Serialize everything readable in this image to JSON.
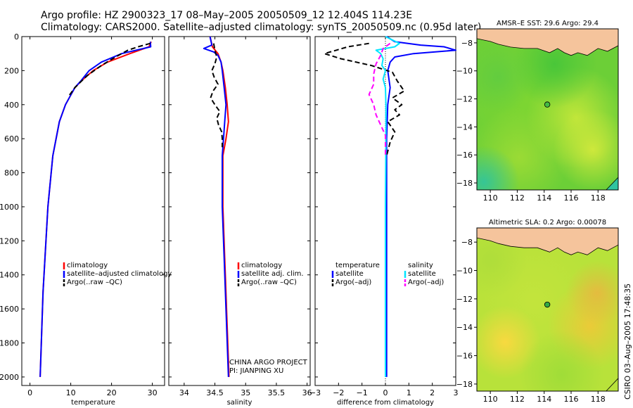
{
  "header": {
    "line1": "Argo profile: HZ 2900323_17 08–May–2005 20050509_12 12.404S 114.23E",
    "line2": "Climatology: CARS2000. Satellite–adjusted climatology: synTS_20050509.nc (0.95d later)"
  },
  "footer": {
    "stamp": "CSIRO 03–Aug–2005 17:48:35"
  },
  "colors": {
    "climatology": "#ff0000",
    "satellite": "#0000ff",
    "argo": "#000000",
    "salinity_satellite": "#00e5ff",
    "salinity_argo": "#ff00ff",
    "land": "#f5c49c",
    "ocean_mid": "#55cc33"
  },
  "chart_data": [
    {
      "type": "line",
      "panel": "temperature",
      "xlabel": "temperature",
      "ylabel": "",
      "xlim": [
        -2,
        33
      ],
      "ylim": [
        2050,
        0
      ],
      "xticks": [
        "0",
        "10",
        "20",
        "30"
      ],
      "xtick_values": [
        0,
        10,
        20,
        30
      ],
      "yticks": [
        "0",
        "200",
        "400",
        "600",
        "800",
        "1000",
        "1200",
        "1400",
        "1600",
        "1800",
        "2000"
      ],
      "ytick_values": [
        0,
        200,
        400,
        600,
        800,
        1000,
        1200,
        1400,
        1600,
        1800,
        2000
      ],
      "legend": [
        "climatology",
        "satellite–adjusted climatology",
        "Argo(..raw –QC)"
      ],
      "series": [
        {
          "name": "climatology",
          "color": "#ff0000",
          "depth": [
            30,
            60,
            100,
            150,
            200,
            260,
            300,
            400,
            500,
            700,
            1000,
            1500,
            2000
          ],
          "values": [
            29.7,
            29.2,
            24.5,
            19,
            15.5,
            12.6,
            11,
            8.7,
            7.2,
            5.6,
            4.4,
            3.2,
            2.5
          ]
        },
        {
          "name": "satellite–adjusted climatology",
          "color": "#0000ff",
          "depth": [
            30,
            60,
            100,
            150,
            200,
            260,
            300,
            400,
            500,
            700,
            1000,
            1500,
            2000
          ],
          "values": [
            29.5,
            29.6,
            22.5,
            17.5,
            14.5,
            12.5,
            11,
            8.7,
            7.2,
            5.6,
            4.4,
            3.2,
            2.5
          ]
        },
        {
          "name": "Argo(..raw –QC)",
          "color": "#000000",
          "dash": true,
          "depth": [
            40,
            60,
            80,
            120,
            170,
            230,
            300,
            350
          ],
          "values": [
            29.5,
            26.5,
            24,
            21,
            17.5,
            14,
            11,
            9.5
          ]
        }
      ]
    },
    {
      "type": "line",
      "panel": "salinity",
      "xlabel": "salinity",
      "xlim": [
        33.75,
        36.05
      ],
      "ylim": [
        2050,
        0
      ],
      "xticks": [
        "34",
        "34.5",
        "35",
        "35.5",
        "36"
      ],
      "xtick_values": [
        34,
        34.5,
        35,
        35.5,
        36
      ],
      "legend": [
        "climatology",
        "satellite adj. clim.",
        "Argo(..raw –QC)"
      ],
      "annotations": [
        "CHINA ARGO PROJECT",
        "PI: JIANPING XU"
      ],
      "series": [
        {
          "name": "climatology",
          "color": "#ff0000",
          "depth": [
            0,
            60,
            100,
            150,
            200,
            300,
            400,
            500,
            600,
            700,
            1000,
            1300,
            1600,
            2000
          ],
          "values": [
            34.42,
            34.46,
            34.55,
            34.6,
            34.63,
            34.67,
            34.7,
            34.72,
            34.68,
            34.63,
            34.63,
            34.66,
            34.69,
            34.73
          ]
        },
        {
          "name": "satellite adj. clim.",
          "color": "#0000ff",
          "depth": [
            0,
            50,
            70,
            90,
            110,
            150,
            200,
            300,
            400,
            500,
            600,
            700,
            1000,
            1300,
            1600,
            2000
          ],
          "values": [
            34.42,
            34.45,
            34.32,
            34.48,
            34.55,
            34.6,
            34.62,
            34.65,
            34.68,
            34.66,
            34.64,
            34.62,
            34.62,
            34.65,
            34.68,
            34.72
          ]
        },
        {
          "name": "Argo(..raw –QC)",
          "color": "#000000",
          "dash": true,
          "depth": [
            40,
            80,
            120,
            160,
            200,
            240,
            280,
            320,
            360,
            400,
            440,
            480,
            520,
            560,
            600,
            650
          ],
          "values": [
            34.48,
            34.5,
            34.53,
            34.5,
            34.45,
            34.49,
            34.55,
            34.47,
            34.43,
            34.5,
            34.58,
            34.53,
            34.56,
            34.61,
            34.62,
            34.62
          ]
        }
      ]
    },
    {
      "type": "line",
      "panel": "difference",
      "xlabel": "difference from climatology",
      "xlim": [
        -3,
        3
      ],
      "ylim": [
        2050,
        0
      ],
      "xticks": [
        "−3",
        "−2",
        "−1",
        "0",
        "1",
        "2",
        "3"
      ],
      "xtick_values": [
        -3,
        -2,
        -1,
        0,
        1,
        2,
        3
      ],
      "legend_left": [
        "temperature",
        "satellite",
        "Argo(–adj)"
      ],
      "legend_right": [
        "salinity",
        "satellite",
        "Argo(–adj)"
      ],
      "series": [
        {
          "name": "temperature satellite",
          "color": "#0000ff",
          "depth": [
            0,
            30,
            50,
            60,
            80,
            100,
            120,
            150,
            200,
            300,
            400,
            600,
            1000,
            1500,
            2000
          ],
          "values": [
            0.05,
            0.4,
            1.5,
            2.5,
            3.0,
            1.2,
            0.4,
            0.2,
            0.1,
            0.2,
            0.1,
            0.05,
            0.05,
            0.05,
            0.05
          ]
        },
        {
          "name": "temperature Argo(–adj)",
          "color": "#000000",
          "dash": true,
          "depth": [
            40,
            60,
            80,
            100,
            130,
            170,
            210,
            260,
            320,
            360,
            400,
            430,
            460,
            500,
            560,
            620,
            700
          ],
          "values": [
            -0.7,
            -1.6,
            -2.1,
            -2.6,
            -1.9,
            -0.6,
            0.3,
            0.5,
            0.8,
            0.3,
            0.7,
            0.4,
            0.6,
            0.1,
            0.4,
            0.2,
            0.05
          ]
        },
        {
          "name": "salinity satellite",
          "color": "#00e5ff",
          "depth": [
            0,
            40,
            60,
            80,
            100,
            130,
            170,
            200,
            250,
            300,
            400,
            600,
            1000,
            1500,
            2000
          ],
          "values": [
            0.0,
            0.6,
            0.4,
            -0.4,
            -0.2,
            -0.1,
            -0.15,
            0.0,
            -0.1,
            0.0,
            0.02,
            0.02,
            0.0,
            0.0,
            0.0
          ]
        },
        {
          "name": "salinity Argo(–adj)",
          "color": "#ff00ff",
          "dash": true,
          "depth": [
            40,
            70,
            110,
            160,
            220,
            280,
            340,
            400,
            460,
            520,
            580,
            640,
            700
          ],
          "values": [
            0.2,
            -0.1,
            -0.2,
            -0.4,
            -0.5,
            -0.5,
            -0.7,
            -0.5,
            -0.4,
            -0.2,
            0.0,
            0.0,
            0.0
          ]
        }
      ]
    },
    {
      "type": "heatmap",
      "panel": "sst_map",
      "title": "AMSR–E SST: 29.6 Argo: 29.4",
      "xlim": [
        109,
        119.5
      ],
      "ylim": [
        -18.5,
        -7
      ],
      "xticks": [
        "110",
        "112",
        "114",
        "116",
        "118"
      ],
      "xtick_values": [
        110,
        112,
        114,
        116,
        118
      ],
      "yticks": [
        "−8",
        "−10",
        "−12",
        "−14",
        "−16",
        "−18"
      ],
      "ytick_values": [
        -8,
        -10,
        -12,
        -14,
        -16,
        -18
      ],
      "marker": {
        "lon": 114.23,
        "lat": -12.404
      }
    },
    {
      "type": "heatmap",
      "panel": "sla_map",
      "title": "Altimetric SLA: 0.2 Argo: 0.00078",
      "xlim": [
        109,
        119.5
      ],
      "ylim": [
        -18.5,
        -7
      ],
      "xticks": [
        "110",
        "112",
        "114",
        "116",
        "118"
      ],
      "xtick_values": [
        110,
        112,
        114,
        116,
        118
      ],
      "yticks": [
        "−8",
        "−10",
        "−12",
        "−14",
        "−16",
        "−18"
      ],
      "ytick_values": [
        -8,
        -10,
        -12,
        -14,
        -16,
        -18
      ],
      "marker": {
        "lon": 114.23,
        "lat": -12.404
      }
    }
  ]
}
